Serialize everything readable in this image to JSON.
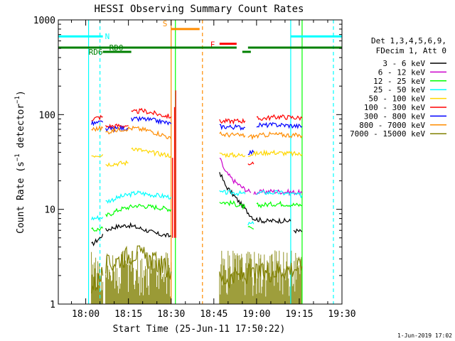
{
  "chart_data": {
    "type": "line",
    "title": "HESSI Observing Summary Count Rates",
    "xlabel": "Start Time (25-Jun-11 17:50:22)",
    "ylabel": "Count Rate (s⁻¹ detector⁻¹)",
    "ylabel_main": "Count Rate (s",
    "ylabel_sup1": "−1",
    "ylabel_mid": " detector",
    "ylabel_sup2": "−1",
    "ylabel_end": ")",
    "yscale": "log",
    "ylim": [
      1,
      1000
    ],
    "xlim": [
      "17:50:22",
      "19:30"
    ],
    "x_ticks": [
      "18:00",
      "18:15",
      "18:30",
      "18:45",
      "19:00",
      "19:15",
      "19:30"
    ],
    "y_ticks": [
      "1",
      "10",
      "100",
      "1000"
    ],
    "legend_position": "right",
    "legend_header": [
      "Det 1,3,4,5,6,9,",
      "FDecim 1, Att 0"
    ],
    "footer": "1-Jun-2019 17:02",
    "series": [
      {
        "name": "3 - 6 keV",
        "color": "#000000",
        "segments": [
          {
            "t": [
              "18:02",
              "18:05",
              "18:06"
            ],
            "v": [
              4.2,
              5,
              5.5
            ]
          },
          {
            "t": [
              "18:07",
              "18:10",
              "18:15",
              "18:20",
              "18:25",
              "18:30"
            ],
            "v": [
              6,
              6.5,
              6.8,
              6.2,
              5.5,
              5.2
            ]
          },
          {
            "t": [
              "18:47",
              "18:49",
              "18:52",
              "18:56",
              "18:59",
              "19:03",
              "19:08",
              "19:12"
            ],
            "v": [
              25,
              18,
              14,
              10,
              8,
              7.5,
              7.6,
              7.5
            ]
          },
          {
            "t": [
              "19:13",
              "19:16"
            ],
            "v": [
              6,
              5.8
            ]
          }
        ]
      },
      {
        "name": "6 - 12 keV",
        "color": "#cc00cc",
        "segments": [
          {
            "t": [
              "18:47",
              "18:49",
              "18:52",
              "18:55",
              "18:58"
            ],
            "v": [
              35,
              25,
              20,
              17,
              15
            ]
          },
          {
            "t": [
              "18:59",
              "19:05",
              "19:16"
            ],
            "v": [
              15,
              15.5,
              15
            ]
          }
        ]
      },
      {
        "name": "12 - 25 keV",
        "color": "#00ff00",
        "segments": [
          {
            "t": [
              "18:02",
              "18:06"
            ],
            "v": [
              6,
              6.3
            ]
          },
          {
            "t": [
              "18:07",
              "18:12",
              "18:18",
              "18:25",
              "18:30"
            ],
            "v": [
              8.5,
              10,
              11,
              10.5,
              10
            ]
          },
          {
            "t": [
              "18:47",
              "18:52",
              "18:56"
            ],
            "v": [
              12,
              11.5,
              10.5
            ]
          },
          {
            "t": [
              "18:57",
              "18:59"
            ],
            "v": [
              6.3,
              6.2
            ]
          },
          {
            "t": [
              "19:00",
              "19:08",
              "19:16"
            ],
            "v": [
              11,
              11.5,
              11
            ]
          }
        ]
      },
      {
        "name": "25 - 50 keV",
        "color": "#00ffff",
        "segments": [
          {
            "t": [
              "18:02",
              "18:06"
            ],
            "v": [
              8,
              8.3
            ]
          },
          {
            "t": [
              "18:07",
              "18:12",
              "18:18",
              "18:25",
              "18:30"
            ],
            "v": [
              12,
              13.5,
              15,
              14,
              13.5
            ]
          },
          {
            "t": [
              "18:47",
              "18:52",
              "18:56"
            ],
            "v": [
              15,
              15,
              14.5
            ]
          },
          {
            "t": [
              "18:57",
              "18:59"
            ],
            "v": [
              7,
              7
            ]
          },
          {
            "t": [
              "19:00",
              "19:08",
              "19:16"
            ],
            "v": [
              15,
              15,
              14
            ]
          }
        ]
      },
      {
        "name": "50 - 100 keV",
        "color": "#ffd700",
        "segments": [
          {
            "t": [
              "18:02",
              "18:06"
            ],
            "v": [
              37,
              38
            ]
          },
          {
            "t": [
              "18:07",
              "18:15"
            ],
            "v": [
              30,
              31
            ]
          },
          {
            "t": [
              "18:16",
              "18:22",
              "18:30"
            ],
            "v": [
              45,
              40,
              37
            ]
          },
          {
            "t": [
              "18:47",
              "18:56"
            ],
            "v": [
              38,
              37
            ]
          },
          {
            "t": [
              "18:57",
              "19:05",
              "19:16"
            ],
            "v": [
              38,
              40,
              38
            ]
          }
        ]
      },
      {
        "name": "100 - 300 keV",
        "color": "#ff0000",
        "segments": [
          {
            "t": [
              "18:02",
              "18:06"
            ],
            "v": [
              90,
              95
            ]
          },
          {
            "t": [
              "18:07",
              "18:15"
            ],
            "v": [
              75,
              77
            ]
          },
          {
            "t": [
              "18:16",
              "18:20",
              "18:26",
              "18:30"
            ],
            "v": [
              105,
              110,
              100,
              95
            ]
          },
          {
            "t": [
              "18:47",
              "18:56"
            ],
            "v": [
              85,
              86
            ]
          },
          {
            "t": [
              "18:57",
              "18:59"
            ],
            "v": [
              31,
              30
            ]
          },
          {
            "t": [
              "19:00",
              "19:08",
              "19:16"
            ],
            "v": [
              90,
              95,
              92
            ]
          }
        ]
      },
      {
        "name": "300 - 800 keV",
        "color": "#0000ff",
        "segments": [
          {
            "t": [
              "18:02",
              "18:06"
            ],
            "v": [
              80,
              83
            ]
          },
          {
            "t": [
              "18:07",
              "18:15"
            ],
            "v": [
              70,
              72
            ]
          },
          {
            "t": [
              "18:16",
              "18:20",
              "18:26",
              "18:30"
            ],
            "v": [
              88,
              90,
              85,
              80
            ]
          },
          {
            "t": [
              "18:47",
              "18:56"
            ],
            "v": [
              75,
              73
            ]
          },
          {
            "t": [
              "18:57",
              "18:59"
            ],
            "v": [
              40,
              40
            ]
          },
          {
            "t": [
              "19:00",
              "19:08",
              "19:16"
            ],
            "v": [
              77,
              78,
              75
            ]
          }
        ]
      },
      {
        "name": "800 - 7000 keV",
        "color": "#ff8c00",
        "segments": [
          {
            "t": [
              "18:02",
              "18:06"
            ],
            "v": [
              70,
              72
            ]
          },
          {
            "t": [
              "18:07",
              "18:12",
              "18:17",
              "18:22",
              "18:28",
              "18:30"
            ],
            "v": [
              65,
              70,
              72,
              68,
              60,
              55
            ]
          },
          {
            "t": [
              "18:47",
              "18:56"
            ],
            "v": [
              62,
              60
            ]
          },
          {
            "t": [
              "18:57",
              "19:05",
              "19:16"
            ],
            "v": [
              58,
              62,
              60
            ]
          }
        ]
      },
      {
        "name": "7000 - 15000 keV",
        "color": "#808000",
        "segments": [
          {
            "t": [
              "18:02",
              "18:06"
            ],
            "v": [
              1.5,
              2
            ]
          },
          {
            "t": [
              "18:07",
              "18:12",
              "18:17",
              "18:22",
              "18:27",
              "18:30"
            ],
            "v": [
              2.5,
              3,
              3.5,
              3,
              2.5,
              2.2
            ]
          },
          {
            "t": [
              "18:47",
              "18:55",
              "19:05",
              "19:16"
            ],
            "v": [
              1.8,
              2,
              2.2,
              2.5
            ]
          }
        ]
      }
    ],
    "spikes": [
      {
        "t": "18:30.5",
        "v": 35
      },
      {
        "t": "18:31.2",
        "v": 120
      },
      {
        "t": "18:31.6",
        "v": 180
      }
    ],
    "vlines": [
      {
        "t": "18:01",
        "color": "#00ffff",
        "style": "solid"
      },
      {
        "t": "18:05",
        "color": "#00ffff",
        "style": "dashed"
      },
      {
        "t": "18:30",
        "color": "#ff8c00",
        "style": "solid"
      },
      {
        "t": "18:31.5",
        "color": "#00ff00",
        "style": "solid"
      },
      {
        "t": "18:41",
        "color": "#ff8c00",
        "style": "dashed"
      },
      {
        "t": "19:12",
        "color": "#00ffff",
        "style": "solid"
      },
      {
        "t": "19:16",
        "color": "#00ff00",
        "style": "solid"
      },
      {
        "t": "19:27",
        "color": "#00ffff",
        "style": "dashed"
      }
    ],
    "flag_bars": [
      {
        "label": "N",
        "color": "#00ffff",
        "level": 670,
        "intervals": [
          [
            "17:50:22",
            "18:06"
          ],
          [
            "19:12",
            "19:30"
          ]
        ]
      },
      {
        "label": "S",
        "color": "#ff8c00",
        "level": 800,
        "intervals": [
          [
            "18:30",
            "18:40"
          ]
        ]
      },
      {
        "label": "F",
        "color": "#ff0000",
        "level": 560,
        "intervals": [
          [
            "18:47",
            "18:53"
          ]
        ]
      },
      {
        "label": "RD0",
        "color": "#008000",
        "level": 510,
        "intervals": [
          [
            "17:50:22",
            "18:53"
          ],
          [
            "18:57",
            "19:30"
          ]
        ]
      },
      {
        "label": "RD6",
        "color": "#008000",
        "level": 460,
        "intervals": [
          [
            "18:06",
            "18:16"
          ],
          [
            "18:55",
            "18:58"
          ]
        ]
      }
    ]
  },
  "colors": {
    "axis": "#000000",
    "text": "#000000"
  }
}
